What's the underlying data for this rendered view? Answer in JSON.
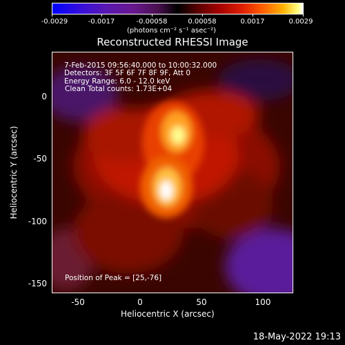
{
  "colorbar": {
    "tick_labels": [
      "-0.0029",
      "-0.0017",
      "-0.00058",
      "0.00058",
      "0.0017",
      "0.0029"
    ],
    "units": "(photons cm⁻² s⁻¹ asec⁻²)"
  },
  "plot": {
    "title": "Reconstructed RHESSI Image",
    "info_lines": [
      "7-Feb-2015 09:56:40.000 to 10:00:32.000",
      "Detectors: 3F 5F 6F 7F 8F 9F, Att 0",
      "Energy Range: 6.0 - 12.0 keV",
      "Clean     Total counts: 1.73E+04"
    ],
    "peak_text": "Position of Peak = [25,-76]",
    "x_axis": {
      "label": "Heliocentric X (arcsec)",
      "ticks": [
        "-50",
        "0",
        "50",
        "100"
      ],
      "range": [
        -70,
        125
      ]
    },
    "y_axis": {
      "label": "Heliocentric Y (arcsec)",
      "ticks": [
        "0",
        "-50",
        "-100",
        "-150"
      ],
      "range": [
        -158,
        35
      ]
    },
    "peak_position": [
      25,
      -76
    ]
  },
  "footer": {
    "timestamp": "18-May-2022 19:13"
  },
  "colors": {
    "background": "#000000",
    "foreground": "#ffffff"
  }
}
